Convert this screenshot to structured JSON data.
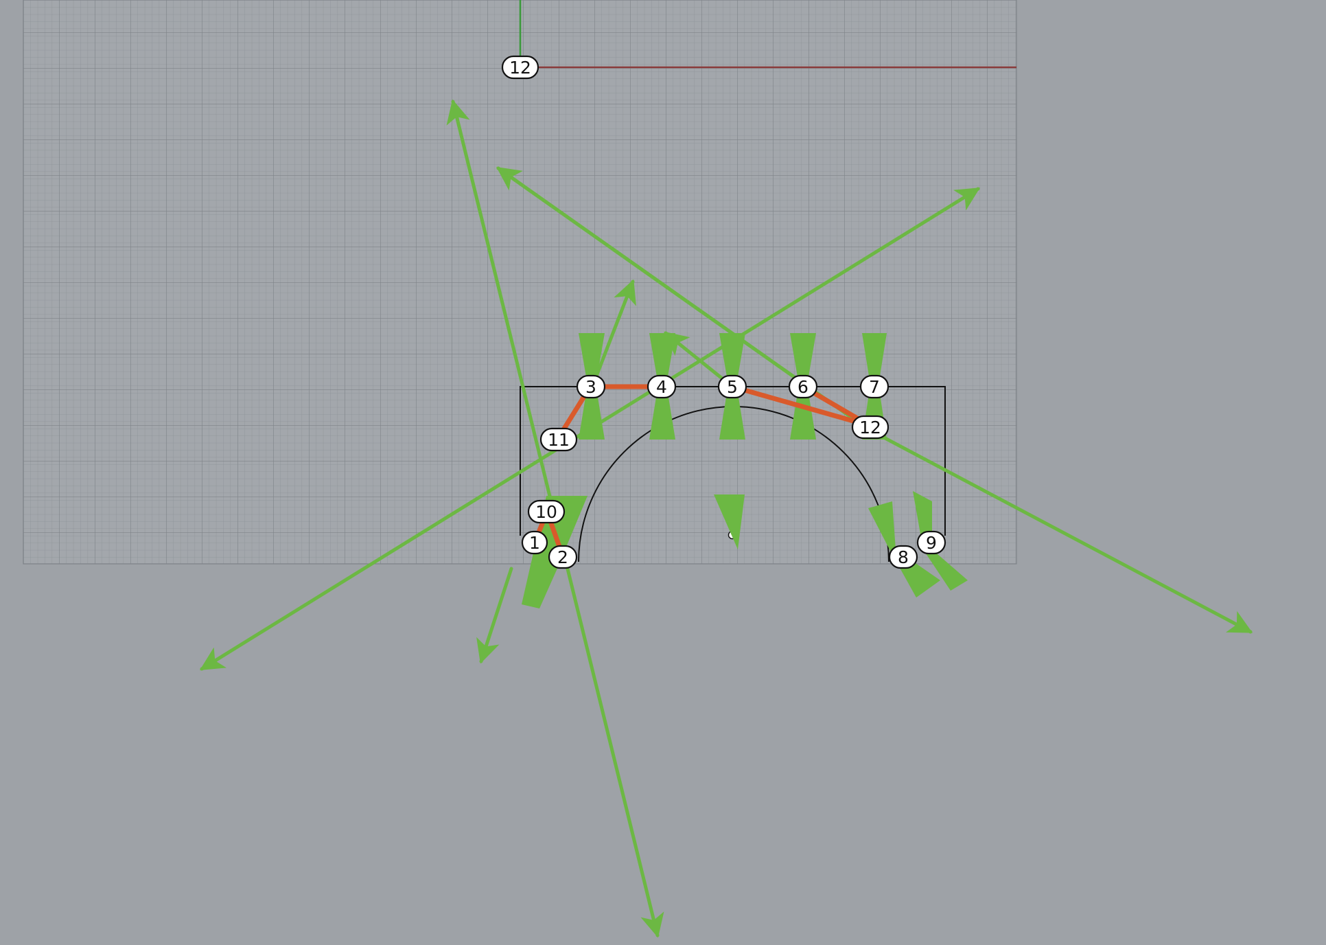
{
  "viewport": {
    "background_color": "#9ea2a7",
    "grid_color": "#8a8f94",
    "grid_major_color": "#7c8186",
    "x_axis_color": "#8b3b3b",
    "y_axis_color": "#3a9a3a",
    "vector_color": "#6cb843",
    "polyline_color": "#d95a2b",
    "curve_color": "#111111"
  },
  "axis_marker": {
    "label": "12"
  },
  "nodes": [
    {
      "id": "n1",
      "label": "1"
    },
    {
      "id": "n2",
      "label": "2"
    },
    {
      "id": "n3",
      "label": "3"
    },
    {
      "id": "n4",
      "label": "4"
    },
    {
      "id": "n5",
      "label": "5"
    },
    {
      "id": "n6",
      "label": "6"
    },
    {
      "id": "n7",
      "label": "7"
    },
    {
      "id": "n8",
      "label": "8"
    },
    {
      "id": "n9",
      "label": "9"
    },
    {
      "id": "n10",
      "label": "10"
    },
    {
      "id": "n11",
      "label": "11"
    },
    {
      "id": "n12",
      "label": "12"
    }
  ]
}
